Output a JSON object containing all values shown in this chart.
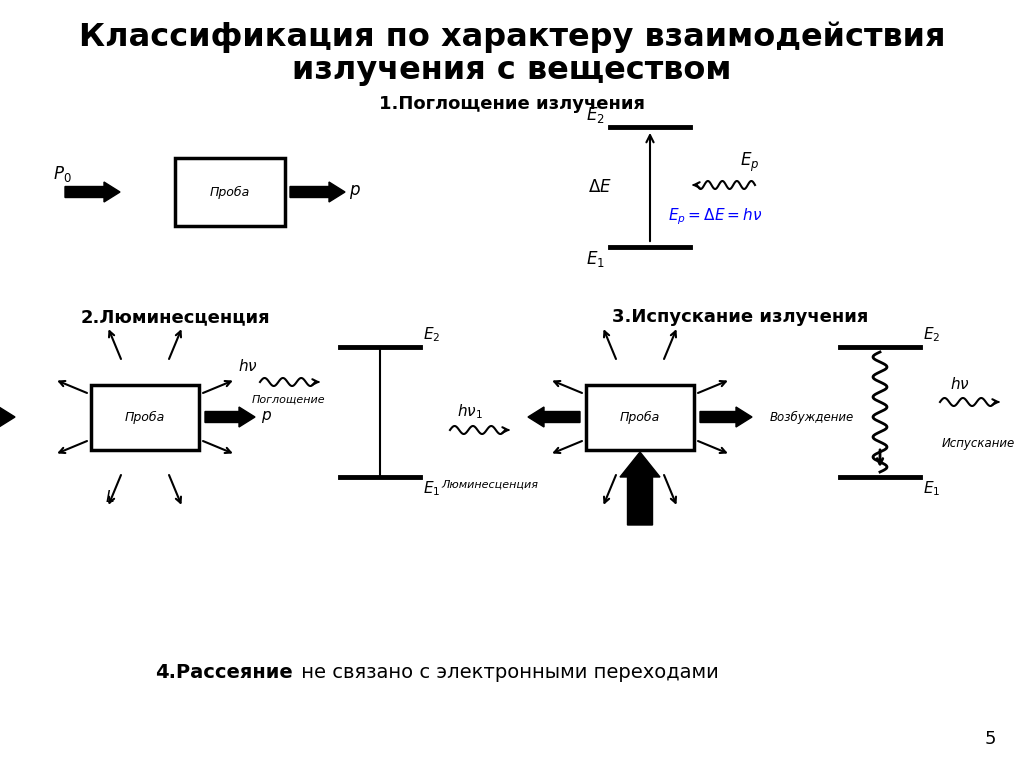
{
  "title_line1": "Классификация по характеру взаимодействия",
  "title_line2": "излучения с веществом",
  "title_fontsize": 22,
  "bg_color": "#ffffff",
  "section1_label": "1.Поглощение излучения",
  "section2_label": "2.Люминесценция",
  "section3_label": "3.Испускание излучения",
  "section4_label_bold": "4.Рассеяние",
  "section4_label_normal": " не связано с электронными переходами",
  "probe_label": "Проба",
  "page_number": "5",
  "blue_color": "#0000ff",
  "black_color": "#000000"
}
